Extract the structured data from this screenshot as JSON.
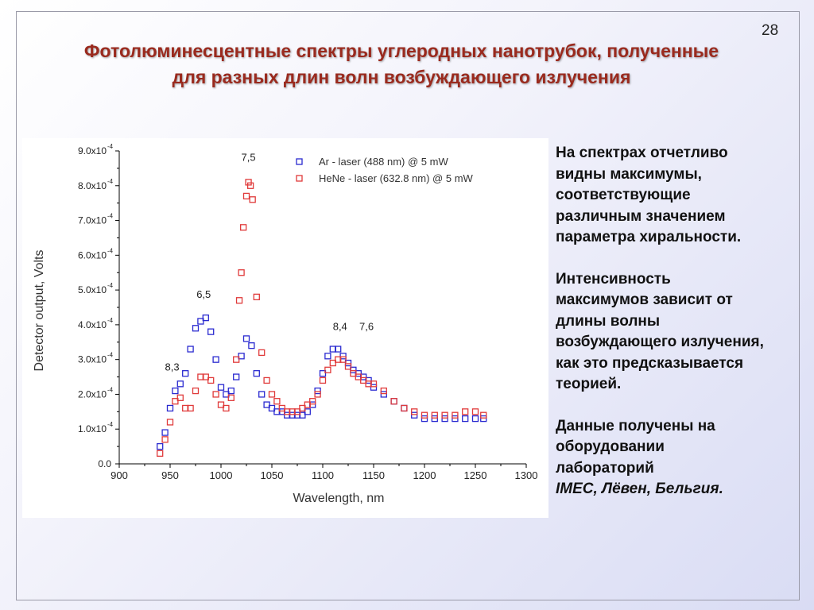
{
  "slide": {
    "number": "28",
    "title_lines": [
      "Фотолюминесцентные спектры углеродных нанотрубок, полученные",
      "для разных длин волн возбуждающего излучения"
    ],
    "colors": {
      "title": "#9a2a1e",
      "ar_series": "#2a2ad0",
      "hene_series": "#e03a3a"
    }
  },
  "side_text": {
    "p1": [
      "На спектрах отчетливо",
      "видны максимумы,",
      "соответствующие",
      "различным значением",
      "параметра хиральности."
    ],
    "p2": [
      "Интенсивность",
      "максимумов зависит от",
      "длины волны",
      "возбуждающего излучения,",
      "как это предсказывается",
      "теорией."
    ],
    "p3": [
      "Данные получены на",
      "оборудовании",
      "лабораторий"
    ],
    "p3_italic": "IMEC, Лёвен, Бельгия."
  },
  "chart_data": {
    "type": "scatter",
    "xlabel": "Wavelength, nm",
    "ylabel": "Detector output, Volts",
    "xlim": [
      900,
      1300
    ],
    "ylim": [
      0,
      0.0009
    ],
    "xticks": [
      "900",
      "950",
      "1000",
      "1050",
      "1100",
      "1150",
      "1200",
      "1250",
      "1300"
    ],
    "yticks": [
      {
        "mant": "0.0",
        "exp": ""
      },
      {
        "mant": "1.0x10",
        "exp": "-4"
      },
      {
        "mant": "2.0x10",
        "exp": "-4"
      },
      {
        "mant": "3.0x10",
        "exp": "-4"
      },
      {
        "mant": "4.0x10",
        "exp": "-4"
      },
      {
        "mant": "5.0x10",
        "exp": "-4"
      },
      {
        "mant": "6.0x10",
        "exp": "-4"
      },
      {
        "mant": "7.0x10",
        "exp": "-4"
      },
      {
        "mant": "8.0x10",
        "exp": "-4"
      },
      {
        "mant": "9.0x10",
        "exp": "-4"
      }
    ],
    "legend": [
      {
        "label": "Ar - laser (488 nm) @ 5 mW",
        "color": "#2a2ad0"
      },
      {
        "label": "HeNe - laser (632.8 nm) @ 5 mW",
        "color": "#e03a3a"
      }
    ],
    "legend_position": "top-right",
    "annotations": [
      {
        "text": "8,3",
        "x": 952,
        "y": 0.000268
      },
      {
        "text": "6,5",
        "x": 983,
        "y": 0.000477
      },
      {
        "text": "7,5",
        "x": 1027,
        "y": 0.000872
      },
      {
        "text": "8,4",
        "x": 1117,
        "y": 0.000385
      },
      {
        "text": "7,6",
        "x": 1143,
        "y": 0.000385
      }
    ],
    "series": [
      {
        "name": "Ar - laser (488 nm) @ 5 mW",
        "color": "#2a2ad0",
        "x": [
          940,
          945,
          950,
          955,
          960,
          965,
          970,
          975,
          980,
          985,
          990,
          995,
          1000,
          1005,
          1010,
          1015,
          1020,
          1025,
          1030,
          1035,
          1040,
          1045,
          1050,
          1055,
          1060,
          1065,
          1070,
          1075,
          1080,
          1085,
          1090,
          1095,
          1100,
          1105,
          1110,
          1115,
          1120,
          1125,
          1130,
          1135,
          1140,
          1145,
          1150,
          1160,
          1170,
          1180,
          1190,
          1200,
          1210,
          1220,
          1230,
          1240,
          1250,
          1258
        ],
        "y": [
          5e-05,
          9e-05,
          0.00016,
          0.00021,
          0.00023,
          0.00026,
          0.00033,
          0.00039,
          0.00041,
          0.00042,
          0.00038,
          0.0003,
          0.00022,
          0.0002,
          0.00021,
          0.00025,
          0.00031,
          0.00036,
          0.00034,
          0.00026,
          0.0002,
          0.00017,
          0.00016,
          0.00015,
          0.00015,
          0.00014,
          0.00014,
          0.00014,
          0.00014,
          0.00015,
          0.00017,
          0.00021,
          0.00026,
          0.00031,
          0.00033,
          0.00033,
          0.00031,
          0.00029,
          0.00027,
          0.00026,
          0.00025,
          0.00024,
          0.00022,
          0.0002,
          0.00018,
          0.00016,
          0.00014,
          0.00013,
          0.00013,
          0.00013,
          0.00013,
          0.00013,
          0.00013,
          0.00013
        ]
      },
      {
        "name": "HeNe - laser (632.8 nm) @ 5 mW",
        "color": "#e03a3a",
        "x": [
          940,
          945,
          950,
          955,
          960,
          965,
          970,
          975,
          980,
          985,
          990,
          995,
          1000,
          1005,
          1010,
          1015,
          1018,
          1020,
          1022,
          1025,
          1027,
          1029,
          1031,
          1035,
          1040,
          1045,
          1050,
          1055,
          1060,
          1065,
          1070,
          1075,
          1080,
          1085,
          1090,
          1095,
          1100,
          1105,
          1110,
          1115,
          1120,
          1125,
          1130,
          1135,
          1140,
          1145,
          1150,
          1160,
          1170,
          1180,
          1190,
          1200,
          1210,
          1220,
          1230,
          1240,
          1250,
          1258
        ],
        "y": [
          3e-05,
          7e-05,
          0.00012,
          0.00018,
          0.00019,
          0.00016,
          0.00016,
          0.00021,
          0.00025,
          0.00025,
          0.00024,
          0.0002,
          0.00017,
          0.00016,
          0.00019,
          0.0003,
          0.00047,
          0.00055,
          0.00068,
          0.00077,
          0.00081,
          0.0008,
          0.00076,
          0.00048,
          0.00032,
          0.00024,
          0.0002,
          0.00018,
          0.00016,
          0.00015,
          0.00015,
          0.00015,
          0.00016,
          0.00017,
          0.00018,
          0.0002,
          0.00024,
          0.00027,
          0.00029,
          0.0003,
          0.0003,
          0.00028,
          0.00026,
          0.00025,
          0.00024,
          0.00023,
          0.00023,
          0.00021,
          0.00018,
          0.00016,
          0.00015,
          0.00014,
          0.00014,
          0.00014,
          0.00014,
          0.00015,
          0.00015,
          0.00014
        ]
      }
    ]
  }
}
